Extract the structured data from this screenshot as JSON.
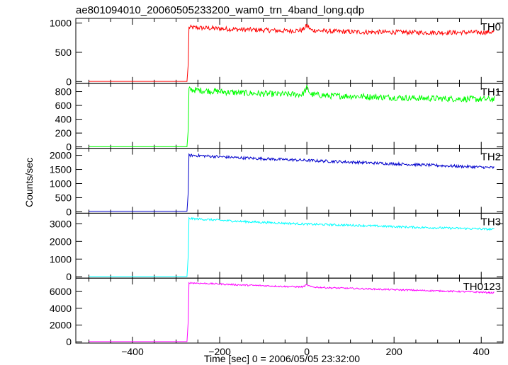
{
  "title": "ae801094010_20060505233200_wam0_trn_4band_long.qdp",
  "ylabel": "Counts/sec",
  "xlabel": "Time [sec] 0 = 2006/05/05 23:32:00",
  "chart_data": {
    "type": "line",
    "title": "ae801094010_20060505233200_wam0_trn_4band_long.qdp",
    "xlabel": "Time [sec] 0 = 2006/05/05 23:32:00",
    "ylabel": "Counts/sec",
    "xlim": [
      -530,
      450
    ],
    "xticks": [
      -400,
      -200,
      0,
      200,
      400
    ],
    "grid": false,
    "legend": "none",
    "panels": [
      {
        "name": "TH0",
        "color": "#ff0000",
        "ylim": [
          -30,
          1080
        ],
        "yticks": [
          0,
          500,
          1000
        ],
        "step_time": -271,
        "baseline": 3,
        "x": [
          -500,
          -275,
          -272,
          -271,
          -250,
          -200,
          -150,
          -100,
          -50,
          -10,
          0,
          10,
          50,
          100,
          150,
          200,
          250,
          300,
          350,
          400,
          430
        ],
        "y": [
          3,
          3,
          300,
          925,
          920,
          905,
          890,
          880,
          865,
          880,
          960,
          880,
          860,
          850,
          845,
          845,
          840,
          838,
          840,
          840,
          850
        ],
        "noise": 40
      },
      {
        "name": "TH1",
        "color": "#00ff00",
        "ylim": [
          -20,
          920
        ],
        "yticks": [
          0,
          200,
          400,
          600,
          800
        ],
        "step_time": -271,
        "baseline": 3,
        "x": [
          -500,
          -275,
          -272,
          -271,
          -250,
          -200,
          -150,
          -100,
          -50,
          -10,
          0,
          10,
          50,
          100,
          150,
          200,
          250,
          300,
          350,
          400,
          430
        ],
        "y": [
          3,
          3,
          250,
          830,
          820,
          800,
          780,
          770,
          760,
          760,
          850,
          760,
          740,
          735,
          725,
          715,
          705,
          700,
          695,
          690,
          690
        ],
        "noise": 45
      },
      {
        "name": "TH2",
        "color": "#0000cc",
        "ylim": [
          -50,
          2250
        ],
        "yticks": [
          0,
          500,
          1000,
          1500,
          2000
        ],
        "step_time": -271,
        "baseline": 20,
        "x": [
          -500,
          -275,
          -272,
          -271,
          -250,
          -200,
          -150,
          -100,
          -50,
          0,
          50,
          100,
          150,
          200,
          250,
          300,
          350,
          400,
          430
        ],
        "y": [
          20,
          20,
          700,
          2000,
          1990,
          1950,
          1910,
          1880,
          1850,
          1820,
          1790,
          1760,
          1730,
          1700,
          1670,
          1640,
          1610,
          1580,
          1560
        ],
        "noise": 50
      },
      {
        "name": "TH3",
        "color": "#00ffff",
        "ylim": [
          -80,
          3600
        ],
        "yticks": [
          0,
          1000,
          2000,
          3000
        ],
        "step_time": -271,
        "baseline": 10,
        "x": [
          -500,
          -275,
          -272,
          -271,
          -250,
          -200,
          -150,
          -100,
          -50,
          0,
          50,
          100,
          150,
          200,
          250,
          300,
          350,
          400,
          430
        ],
        "y": [
          10,
          10,
          1200,
          3300,
          3270,
          3200,
          3130,
          3080,
          3030,
          2980,
          2950,
          2920,
          2880,
          2840,
          2800,
          2770,
          2740,
          2710,
          2680
        ],
        "noise": 60
      },
      {
        "name": "TH0123",
        "color": "#ff00ff",
        "ylim": [
          -150,
          7600
        ],
        "yticks": [
          0,
          2000,
          4000,
          6000
        ],
        "step_time": -271,
        "baseline": 30,
        "x": [
          -500,
          -275,
          -272,
          -271,
          -250,
          -200,
          -150,
          -100,
          -50,
          -10,
          0,
          10,
          50,
          100,
          150,
          200,
          250,
          300,
          350,
          400,
          430
        ],
        "y": [
          30,
          30,
          2500,
          7050,
          7000,
          6900,
          6780,
          6700,
          6600,
          6550,
          6800,
          6550,
          6450,
          6380,
          6300,
          6220,
          6150,
          6080,
          6000,
          5920,
          5850
        ],
        "noise": 90
      }
    ]
  }
}
